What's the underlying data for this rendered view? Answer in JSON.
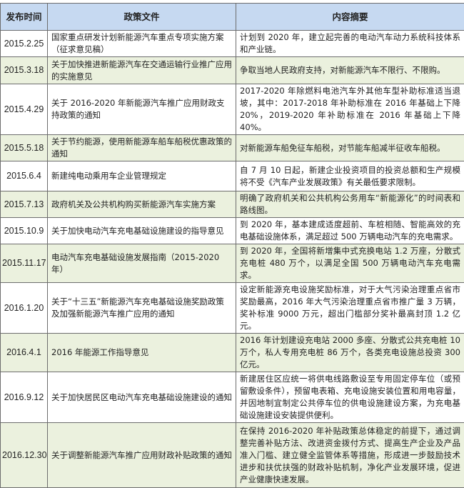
{
  "header": {
    "date": "发布时间",
    "policy": "政策文件",
    "summary": "内容摘要"
  },
  "rows": [
    {
      "date": "2015.2.25",
      "policy": "国家重点研发计划新能源汽车重点专项实施方案（征求意见稿）",
      "summary": "计划到 2020 年，建立起完善的电动汽车动力系统科技体系和产业链。"
    },
    {
      "date": "2015.3.18",
      "policy": "关于加快推进新能源汽车在交通运输行业推广应用的实施意见",
      "summary": "争取当地人民政府支持，对新能源汽车不限行、不限购。"
    },
    {
      "date": "2015.4.29",
      "policy": "关于 2016-2020 年新能源汽车推广应用财政支持政策的通知",
      "summary": "2017-2020 年除燃料电池汽车外其他车型补助标准适当退坡，其中：2017-2018 年补助标准在 2016 年基础上下降 20%，2019-2020 年补助标准在 2016 年基础上下降 40%。"
    },
    {
      "date": "2015.5.18",
      "policy": "关于节约能源，使用新能源车船车船税优惠政策的通知",
      "summary": "对新能源车船免征车船税，对节能车船减半征收车船税。"
    },
    {
      "date": "2015.6.4",
      "policy": "新建纯电动乘用车企业管理规定",
      "summary": "自 7 月 10 日起，新建企业投资项目的投资总额和生产规模将不受《汽车产业发展政策》有关最低要求限制。"
    },
    {
      "date": "2015.7.13",
      "policy": "政府机关及公共机构购买新能源汽车实施方案",
      "summary": "明确了政府机关和公共机构公务用车“新能源化”的时间表和路线图。"
    },
    {
      "date": "2015.10.9",
      "policy": "关于加快电动汽车充电基础设施建设的指导意见",
      "summary": "到 2020 年，基本建成适度超前、车桩相随、智能高效的充电基础设施体系，满足超过 500 万辆电动汽车的充电需求。"
    },
    {
      "date": "2015.11.17",
      "policy": "电动汽车充电基础设施发展指南（2015-2020 年）",
      "summary": "到 2020 年，全国将新增集中式充换电站 1.2 万座，分散式充电桩 480 万个，以满足全国 500 万辆电动汽车充电需求。"
    },
    {
      "date": "2016.1.20",
      "policy": "关于“十三五”新能源汽车充电基础设施奖励政策及加强新能源汽车推广应用的通知",
      "summary": "设定新能源充电设施奖励标准，对于大气污染治理重点省市奖励最高，2016 年大气污染治理重点省市推广量 3 万辆，奖补标准 9000 万元，超出门槛部分奖补最高封顶 1.2 亿元。"
    },
    {
      "date": "2016.4.1",
      "policy": "2016 年能源工作指导意见",
      "summary": "2016 年计划建设充电站 2000 多座、分散式公共充电桩 10 万个，私人专用充电桩 86 万个，各类充电设施总投资 300 亿元。"
    },
    {
      "date": "2016.9.12",
      "policy": "关于加快居民区电动汽车充电基础设施建设的通知",
      "summary": "新建居住区应统一将供电线路敷设至专用固定停车位（或预留敷设条件），预留电表箱、充电设施安装位置和用电容量，并因地制宜制定公共停车位的供电设施建设方案，为充电基础设施建设安装提供便利。"
    },
    {
      "date": "2016.12.30",
      "policy": "关于调整新能源汽车推广应用财政补贴政策的通知",
      "summary": "在保持 2016-2020 年补贴政策总体稳定的前提下，通过调整完善补贴方法、改进资金拨付方式、提高生产企业及产品准入门槛、建立健全监管体系等措施，形成进一步鼓励技术进步和扶优扶强的财政补贴机制，净化产业发展环境，促进产业健康快速发展。"
    }
  ],
  "colors": {
    "header_bg": "#c6d9f1",
    "alt_row_bg": "#ebf1de"
  }
}
